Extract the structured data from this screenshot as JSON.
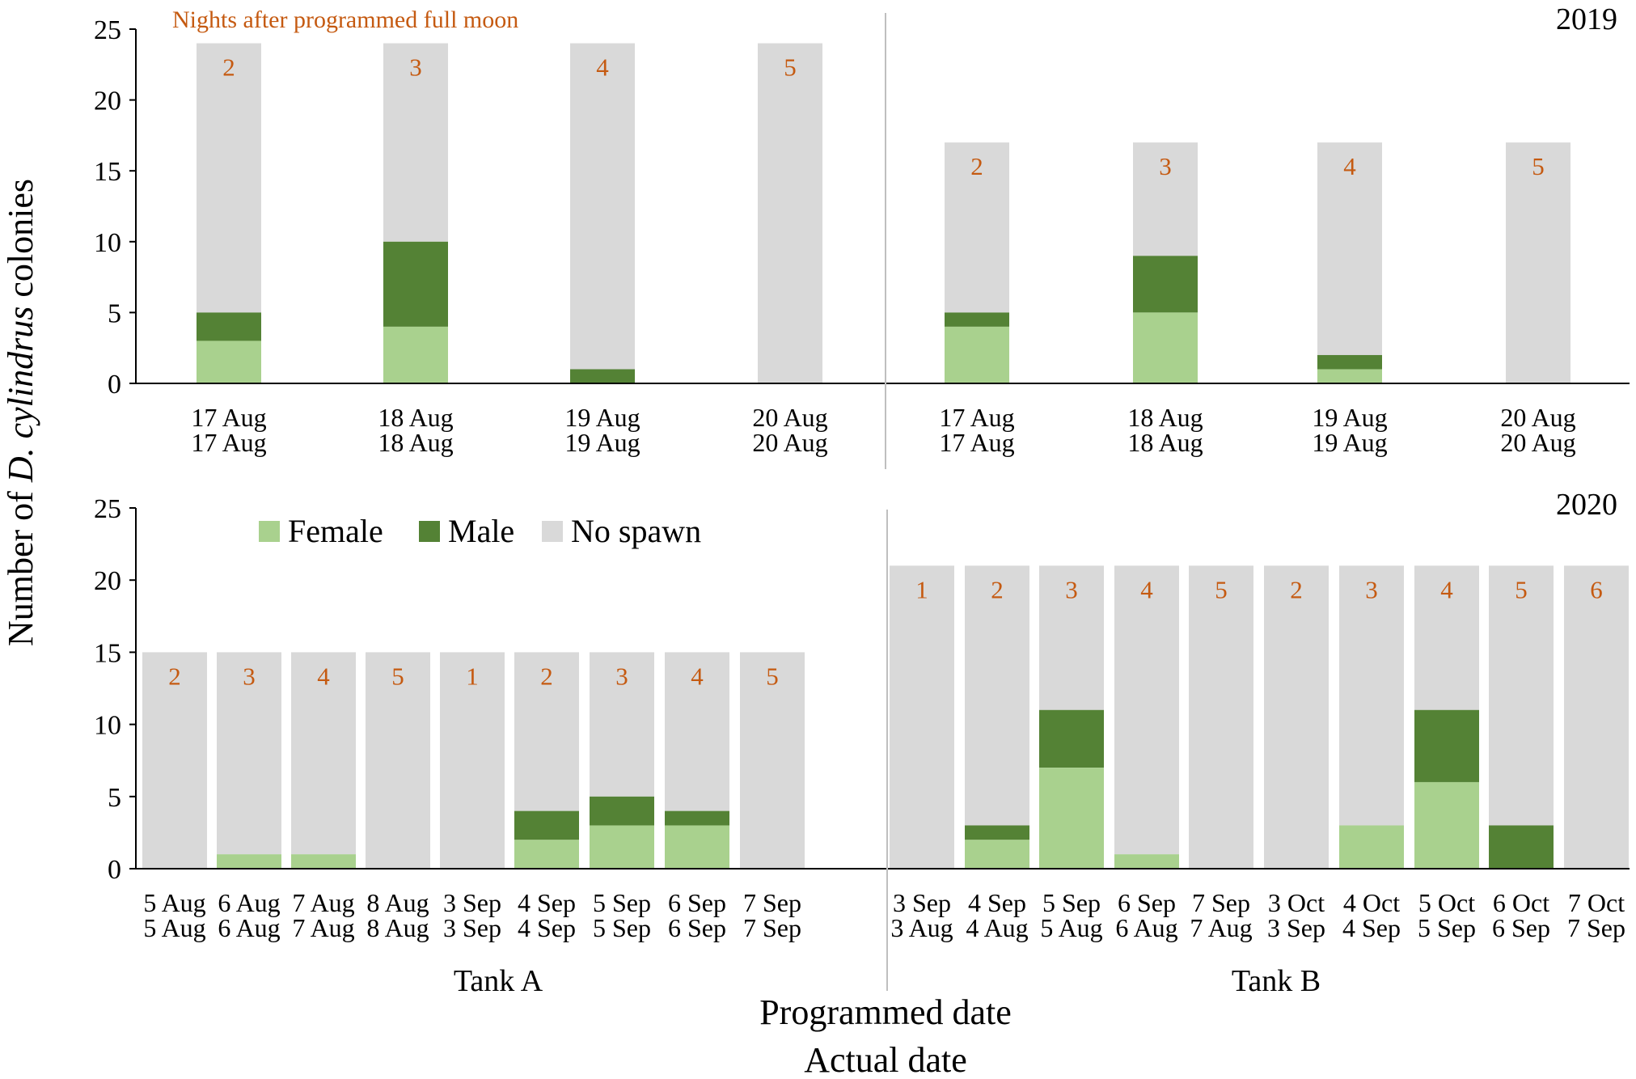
{
  "chart_data": {
    "type": "bar",
    "stacked": true,
    "ylabel_prefix": "Number of ",
    "ylabel_species": "D. cylindrus",
    "ylabel_suffix": " colonies",
    "xlabel_line1": "Programmed date",
    "xlabel_line2": "Actual date",
    "annotation": "Nights after programmed full moon",
    "colors": {
      "female": "#a9d18e",
      "male": "#548235",
      "nospawn": "#d9d9d9",
      "night": "#c55a11"
    },
    "legend": {
      "placement": "top-left of 2020 panel",
      "female": "Female",
      "male": "Male",
      "nospawn": "No spawn"
    },
    "ylim": [
      0,
      25
    ],
    "yticks": [
      "0",
      "5",
      "10",
      "15",
      "20",
      "25"
    ],
    "panels": [
      {
        "year": "2019",
        "groups": [
          {
            "tank": "",
            "bars": [
              {
                "programmed": "17 Aug",
                "actual": "17 Aug",
                "night": "2",
                "female": 3,
                "male": 2,
                "total": 24
              },
              {
                "programmed": "18 Aug",
                "actual": "18 Aug",
                "night": "3",
                "female": 4,
                "male": 6,
                "total": 24
              },
              {
                "programmed": "19 Aug",
                "actual": "19 Aug",
                "night": "4",
                "female": 0,
                "male": 1,
                "total": 24
              },
              {
                "programmed": "20 Aug",
                "actual": "20 Aug",
                "night": "5",
                "female": 0,
                "male": 0,
                "total": 24
              }
            ]
          },
          {
            "tank": "",
            "bars": [
              {
                "programmed": "17 Aug",
                "actual": "17 Aug",
                "night": "2",
                "female": 4,
                "male": 1,
                "total": 17
              },
              {
                "programmed": "18 Aug",
                "actual": "18 Aug",
                "night": "3",
                "female": 5,
                "male": 4,
                "total": 17
              },
              {
                "programmed": "19 Aug",
                "actual": "19 Aug",
                "night": "4",
                "female": 1,
                "male": 1,
                "total": 17
              },
              {
                "programmed": "20 Aug",
                "actual": "20 Aug",
                "night": "5",
                "female": 0,
                "male": 0,
                "total": 17
              }
            ]
          }
        ]
      },
      {
        "year": "2020",
        "groups": [
          {
            "tank": "Tank A",
            "bars": [
              {
                "programmed": "5 Aug",
                "actual": "5 Aug",
                "night": "2",
                "female": 0,
                "male": 0,
                "total": 15
              },
              {
                "programmed": "6 Aug",
                "actual": "6 Aug",
                "night": "3",
                "female": 1,
                "male": 0,
                "total": 15
              },
              {
                "programmed": "7 Aug",
                "actual": "7 Aug",
                "night": "4",
                "female": 1,
                "male": 0,
                "total": 15
              },
              {
                "programmed": "8 Aug",
                "actual": "8 Aug",
                "night": "5",
                "female": 0,
                "male": 0,
                "total": 15
              },
              {
                "programmed": "3 Sep",
                "actual": "3 Sep",
                "night": "1",
                "female": 0,
                "male": 0,
                "total": 15
              },
              {
                "programmed": "4 Sep",
                "actual": "4 Sep",
                "night": "2",
                "female": 2,
                "male": 2,
                "total": 15
              },
              {
                "programmed": "5 Sep",
                "actual": "5 Sep",
                "night": "3",
                "female": 3,
                "male": 2,
                "total": 15
              },
              {
                "programmed": "6 Sep",
                "actual": "6 Sep",
                "night": "4",
                "female": 3,
                "male": 1,
                "total": 15
              },
              {
                "programmed": "7 Sep",
                "actual": "7 Sep",
                "night": "5",
                "female": 0,
                "male": 0,
                "total": 15
              }
            ]
          },
          {
            "tank": "Tank B",
            "bars": [
              {
                "programmed": "3 Sep",
                "actual": "3 Aug",
                "night": "1",
                "female": 0,
                "male": 0,
                "total": 21
              },
              {
                "programmed": "4 Sep",
                "actual": "4 Aug",
                "night": "2",
                "female": 2,
                "male": 1,
                "total": 21
              },
              {
                "programmed": "5 Sep",
                "actual": "5 Aug",
                "night": "3",
                "female": 7,
                "male": 4,
                "total": 21
              },
              {
                "programmed": "6 Sep",
                "actual": "6 Aug",
                "night": "4",
                "female": 1,
                "male": 0,
                "total": 21
              },
              {
                "programmed": "7 Sep",
                "actual": "7 Aug",
                "night": "5",
                "female": 0,
                "male": 0,
                "total": 21
              },
              {
                "programmed": "3 Oct",
                "actual": "3 Sep",
                "night": "2",
                "female": 0,
                "male": 0,
                "total": 21
              },
              {
                "programmed": "4 Oct",
                "actual": "4 Sep",
                "night": "3",
                "female": 3,
                "male": 0,
                "total": 21
              },
              {
                "programmed": "5 Oct",
                "actual": "5 Sep",
                "night": "4",
                "female": 6,
                "male": 5,
                "total": 21
              },
              {
                "programmed": "6 Oct",
                "actual": "6 Sep",
                "night": "5",
                "female": 0,
                "male": 3,
                "total": 21
              },
              {
                "programmed": "7 Oct",
                "actual": "7 Sep",
                "night": "6",
                "female": 0,
                "male": 0,
                "total": 21
              }
            ]
          }
        ]
      }
    ]
  }
}
